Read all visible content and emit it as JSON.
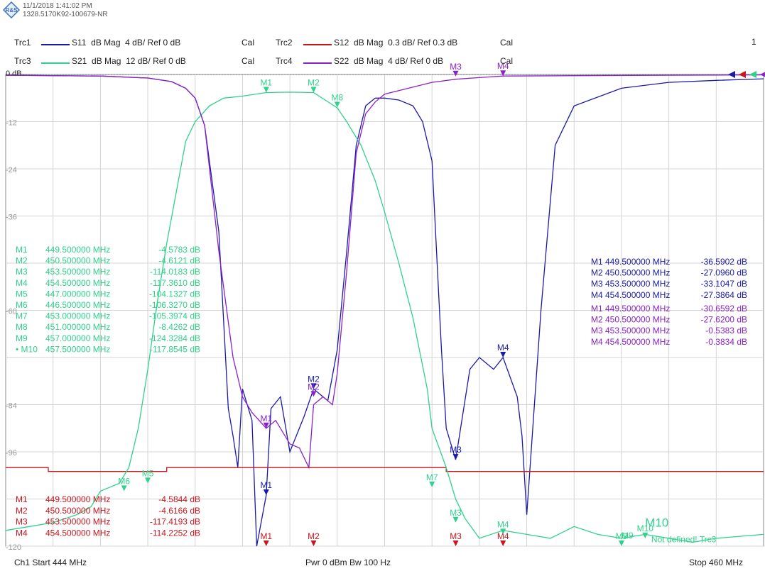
{
  "header": {
    "timestamp": "11/1/2018 1:41:02 PM",
    "instrument_id": "1328.5170K92-100679-NR",
    "page_number": "1"
  },
  "traces": [
    {
      "id": "Trc1",
      "param": "S11",
      "format": "dB Mag",
      "scale": "4 dB/ Ref 0 dB",
      "cal": "Cal",
      "color": "#1a1aa8"
    },
    {
      "id": "Trc2",
      "param": "S12",
      "format": "dB Mag",
      "scale": "0.3 dB/ Ref 0.3 dB",
      "cal": "Cal",
      "color": "#c8161d"
    },
    {
      "id": "Trc3",
      "param": "S21",
      "format": "dB Mag",
      "scale": "12 dB/ Ref 0 dB",
      "cal": "Cal",
      "color": "#2ed28a"
    },
    {
      "id": "Trc4",
      "param": "S22",
      "format": "dB Mag",
      "scale": "4 dB/ Ref 0 dB",
      "cal": "Cal",
      "color": "#8a22c8"
    }
  ],
  "footer": {
    "start": "Ch1  Start  444 MHz",
    "power": "Pwr  0 dBm  Bw  100 Hz",
    "stop": "Stop  460 MHz"
  },
  "chart_data": {
    "type": "line",
    "xlabel": "",
    "ylabel": "",
    "x_unit": "MHz",
    "xlim": [
      444,
      460
    ],
    "ylim": [
      -120,
      0
    ],
    "y_ticks": [
      0,
      -12,
      -24,
      -36,
      -48,
      -60,
      -72,
      -84,
      -96,
      -108,
      -120
    ],
    "y_tick_labels": [
      "0 dB",
      "-12",
      "-24",
      "-36",
      "",
      "-60",
      "",
      "-84",
      "-96",
      "",
      "-120"
    ],
    "grid": true,
    "series": [
      {
        "name": "Trc1 S11",
        "color": "#1a1aa8",
        "x": [
          444,
          446,
          447,
          447.5,
          447.8,
          448.0,
          448.2,
          448.5,
          448.7,
          448.8,
          448.9,
          449.0,
          449.2,
          449.3,
          449.5,
          449.6,
          449.8,
          450.0,
          450.3,
          450.5,
          450.8,
          451.0,
          451.2,
          451.4,
          451.6,
          451.8,
          452.0,
          452.3,
          452.6,
          452.8,
          453.0,
          453.2,
          453.3,
          453.5,
          453.8,
          454.0,
          454.3,
          454.5,
          454.8,
          454.9,
          455.0,
          455.3,
          455.6,
          456,
          457,
          458,
          459,
          460
        ],
        "y": [
          -0.2,
          -0.4,
          -0.9,
          -1.8,
          -3.5,
          -6,
          -13,
          -40,
          -85,
          -92,
          -100,
          -80,
          -88,
          -120,
          -107,
          -85,
          -82,
          -96,
          -87,
          -80,
          -83,
          -70,
          -45,
          -18,
          -8,
          -6,
          -6,
          -6.5,
          -8,
          -12,
          -22,
          -70,
          -90,
          -98,
          -75,
          -72,
          -75,
          -72,
          -82,
          -92,
          -112,
          -60,
          -18,
          -8,
          -3.5,
          -2,
          -1.5,
          -1.1
        ]
      },
      {
        "name": "Trc2 S12",
        "color": "#c8161d",
        "x": [
          444,
          444.9,
          444.9,
          447.4,
          447.4,
          453.3,
          453.3,
          460
        ],
        "y": [
          -100,
          -100,
          -101,
          -101,
          -100,
          -100,
          -101,
          -101
        ]
      },
      {
        "name": "Trc3 S21",
        "color": "#2ed28a",
        "x": [
          444,
          444.5,
          445,
          445.5,
          445.8,
          446.0,
          446.4,
          446.6,
          446.8,
          447.0,
          447.2,
          447.4,
          447.6,
          447.8,
          448,
          448.3,
          448.6,
          449.0,
          449.5,
          450.0,
          450.5,
          451.0,
          451.2,
          451.5,
          451.8,
          452.0,
          452.3,
          452.6,
          452.9,
          453.0,
          453.3,
          453.5,
          453.7,
          454,
          454.5,
          455,
          455.5,
          456,
          456.5,
          457,
          457.5,
          458,
          458.5,
          459,
          460
        ],
        "y": [
          -116,
          -115,
          -114,
          -112,
          -110,
          -106,
          -104,
          -100,
          -90,
          -75,
          -58,
          -43,
          -30,
          -17,
          -12,
          -8,
          -6,
          -5.5,
          -4.6,
          -4.5,
          -4.6,
          -8.5,
          -12,
          -18,
          -27,
          -35,
          -48,
          -62,
          -80,
          -90,
          -100,
          -108,
          -113,
          -118,
          -116,
          -117,
          -118,
          -115,
          -117,
          -118,
          -117,
          -118,
          -119,
          -118,
          -117
        ]
      },
      {
        "name": "Trc4 S22",
        "color": "#8a22c8",
        "x": [
          444,
          446,
          447,
          447.5,
          447.8,
          448.0,
          448.2,
          448.5,
          448.8,
          449.0,
          449.2,
          449.5,
          449.7,
          450.0,
          450.2,
          450.4,
          450.5,
          450.7,
          450.9,
          451.0,
          451.2,
          451.4,
          451.6,
          451.8,
          452,
          453,
          453.5,
          454,
          454.5,
          456,
          458,
          460
        ],
        "y": [
          -0.2,
          -0.4,
          -0.9,
          -1.8,
          -3.5,
          -6,
          -13,
          -45,
          -72,
          -82,
          -86,
          -90,
          -88,
          -94,
          -95,
          -100,
          -84,
          -82,
          -84,
          -76,
          -50,
          -20,
          -10,
          -7,
          -5,
          -2,
          -1.2,
          -0.8,
          -0.4,
          -0.3,
          -0.2,
          -0.1
        ]
      }
    ],
    "plot_markers": [
      {
        "label": "M1",
        "series": "Trc1 S11",
        "x": 449.5,
        "y": -107
      },
      {
        "label": "M2",
        "series": "Trc1 S11",
        "x": 450.5,
        "y": -80
      },
      {
        "label": "M3",
        "series": "Trc1 S11",
        "x": 453.5,
        "y": -98
      },
      {
        "label": "M4",
        "series": "Trc1 S11",
        "x": 454.5,
        "y": -72
      },
      {
        "label": "M1",
        "series": "Trc2 S12",
        "x": 449.5,
        "y": -120
      },
      {
        "label": "M2",
        "series": "Trc2 S12",
        "x": 450.5,
        "y": -120
      },
      {
        "label": "M3",
        "series": "Trc2 S12",
        "x": 453.5,
        "y": -120
      },
      {
        "label": "M4",
        "series": "Trc2 S12",
        "x": 454.5,
        "y": -120
      },
      {
        "label": "M1",
        "series": "Trc3 S21",
        "x": 449.5,
        "y": -4.6
      },
      {
        "label": "M2",
        "series": "Trc3 S21",
        "x": 450.5,
        "y": -4.6
      },
      {
        "label": "M3",
        "series": "Trc3 S21",
        "x": 453.5,
        "y": -114
      },
      {
        "label": "M4",
        "series": "Trc3 S21",
        "x": 454.5,
        "y": -117
      },
      {
        "label": "M5",
        "series": "Trc3 S21",
        "x": 447.0,
        "y": -104
      },
      {
        "label": "M6",
        "series": "Trc3 S21",
        "x": 446.5,
        "y": -106
      },
      {
        "label": "M7",
        "series": "Trc3 S21",
        "x": 453.0,
        "y": -105
      },
      {
        "label": "M8",
        "series": "Trc3 S21",
        "x": 451.0,
        "y": -8.4
      },
      {
        "label": "M9",
        "series": "Trc3 S21",
        "x": 457.0,
        "y": -120
      },
      {
        "label": "M10",
        "series": "Trc3 S21",
        "x": 457.5,
        "y": -118
      },
      {
        "label": "M1",
        "series": "Trc4 S22",
        "x": 449.5,
        "y": -90
      },
      {
        "label": "M2",
        "series": "Trc4 S22",
        "x": 450.5,
        "y": -82
      },
      {
        "label": "M3",
        "series": "Trc4 S22",
        "x": 453.5,
        "y": -0.5
      },
      {
        "label": "M4",
        "series": "Trc4 S22",
        "x": 454.5,
        "y": -0.4
      }
    ],
    "marker_tables": [
      {
        "series": "Trc3 S21",
        "color": "#2ed28a",
        "rows": [
          [
            "M1",
            "449.500000 MHz",
            "-4.5783 dB"
          ],
          [
            "M2",
            "450.500000 MHz",
            "-4.6121 dB"
          ],
          [
            "M3",
            "453.500000 MHz",
            "-114.0183 dB"
          ],
          [
            "M4",
            "454.500000 MHz",
            "-117.3610 dB"
          ],
          [
            "M5",
            "447.000000 MHz",
            "-104.1327 dB"
          ],
          [
            "M6",
            "446.500000 MHz",
            "-106.3270 dB"
          ],
          [
            "M7",
            "453.000000 MHz",
            "-105.3974 dB"
          ],
          [
            "M8",
            "451.000000 MHz",
            "-8.4262 dB"
          ],
          [
            "M9",
            "457.000000 MHz",
            "-124.3284 dB"
          ],
          [
            "• M10",
            "457.500000 MHz",
            "-117.8545 dB"
          ]
        ]
      },
      {
        "series": "Trc1 S11",
        "color": "#1a1aa8",
        "rows": [
          [
            "M1",
            "449.500000 MHz",
            "-36.5902 dB"
          ],
          [
            "M2",
            "450.500000 MHz",
            "-27.0960 dB"
          ],
          [
            "M3",
            "453.500000 MHz",
            "-33.1047 dB"
          ],
          [
            "M4",
            "454.500000 MHz",
            "-27.3864 dB"
          ]
        ]
      },
      {
        "series": "Trc4 S22",
        "color": "#8a22c8",
        "rows": [
          [
            "M1",
            "449.500000 MHz",
            "-30.6592 dB"
          ],
          [
            "M2",
            "450.500000 MHz",
            "-27.6200 dB"
          ],
          [
            "M3",
            "453.500000 MHz",
            "-0.5383 dB"
          ],
          [
            "M4",
            "454.500000 MHz",
            "-0.3834 dB"
          ]
        ]
      },
      {
        "series": "Trc2 S12",
        "color": "#c8161d",
        "rows": [
          [
            "M1",
            "449.500000 MHz",
            "-4.5844 dB"
          ],
          [
            "M2",
            "450.500000 MHz",
            "-4.6166 dB"
          ],
          [
            "M3",
            "453.500000 MHz",
            "-117.4193 dB"
          ],
          [
            "M4",
            "454.500000 MHz",
            "-114.2252 dB"
          ]
        ]
      }
    ],
    "annotations": [
      {
        "text": "M10",
        "color": "#2ed28a",
        "x": 457.5,
        "y": -115
      },
      {
        "text": "M9",
        "color": "#2ed28a",
        "x": 457.0,
        "y": -118
      },
      {
        "text": "Not defined! Trc3",
        "color": "#2ed28a",
        "x": 459.0,
        "y": -119
      }
    ]
  }
}
